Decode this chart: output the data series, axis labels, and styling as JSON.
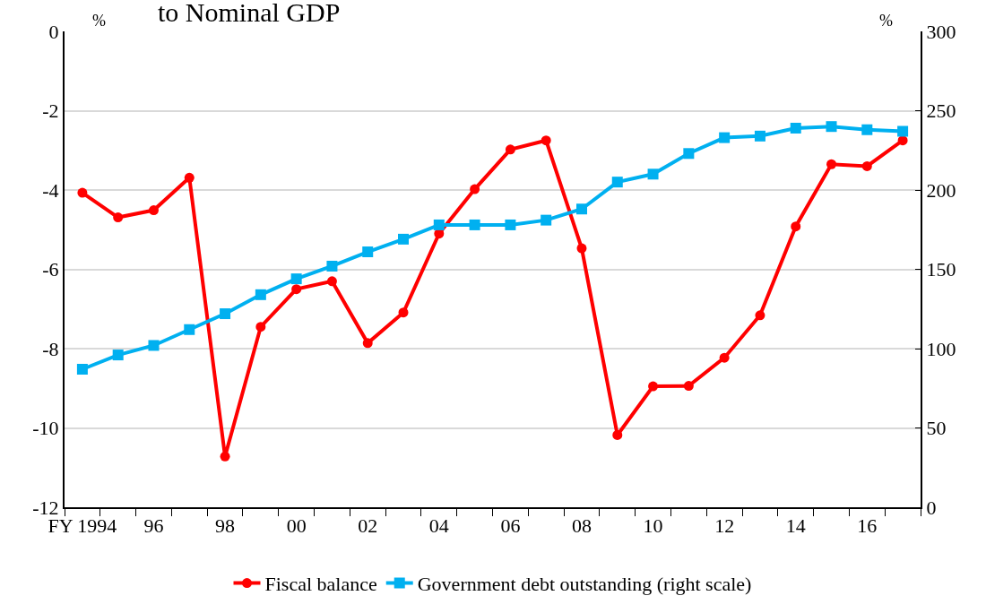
{
  "chart_data": {
    "type": "line",
    "title": "to Nominal GDP",
    "x": [
      1994,
      1995,
      1996,
      1997,
      1998,
      1999,
      2000,
      2001,
      2002,
      2003,
      2004,
      2005,
      2006,
      2007,
      2008,
      2009,
      2010,
      2011,
      2012,
      2013,
      2014,
      2015,
      2016,
      2017
    ],
    "series": [
      {
        "name": "Fiscal balance",
        "color": "#ff0000",
        "marker": "circle",
        "values": [
          -4.07,
          -4.69,
          -4.51,
          -3.69,
          -10.72,
          -7.45,
          -6.5,
          -6.3,
          -7.86,
          -7.09,
          -5.1,
          -3.98,
          -2.98,
          -2.75,
          -5.47,
          -10.18,
          -8.95,
          -8.94,
          -8.23,
          -7.16,
          -4.92,
          -3.35,
          -3.4,
          -2.75
        ]
      },
      {
        "name": "Government debt outstanding (right scale)",
        "color": "#00b0f0",
        "marker": "square",
        "axis": "y2",
        "values": [
          87,
          96,
          102,
          112,
          122,
          134,
          144,
          152,
          161,
          169,
          178,
          178,
          178,
          181,
          188,
          205,
          210,
          223,
          233,
          234,
          239,
          240,
          238,
          237
        ]
      }
    ],
    "xlim": [
      1993.5,
      2017.5
    ],
    "xticks": [
      {
        "value": 1994,
        "label": "FY 1994"
      },
      {
        "value": 1996,
        "label": "96"
      },
      {
        "value": 1998,
        "label": "98"
      },
      {
        "value": 2000,
        "label": "00"
      },
      {
        "value": 2002,
        "label": "02"
      },
      {
        "value": 2004,
        "label": "04"
      },
      {
        "value": 2006,
        "label": "06"
      },
      {
        "value": 2008,
        "label": "08"
      },
      {
        "value": 2010,
        "label": "10"
      },
      {
        "value": 2012,
        "label": "12"
      },
      {
        "value": 2014,
        "label": "14"
      },
      {
        "value": 2016,
        "label": "16"
      }
    ],
    "ylim": [
      -12,
      0
    ],
    "yticks": [
      -12,
      -10,
      -8,
      -6,
      -4,
      -2,
      0
    ],
    "y2lim": [
      0,
      300
    ],
    "y2ticks": [
      0,
      50,
      100,
      150,
      200,
      250,
      300
    ],
    "ylabel": "%",
    "y2label": "%",
    "grid": "y",
    "legend": "bottom",
    "line_style": "solid"
  }
}
